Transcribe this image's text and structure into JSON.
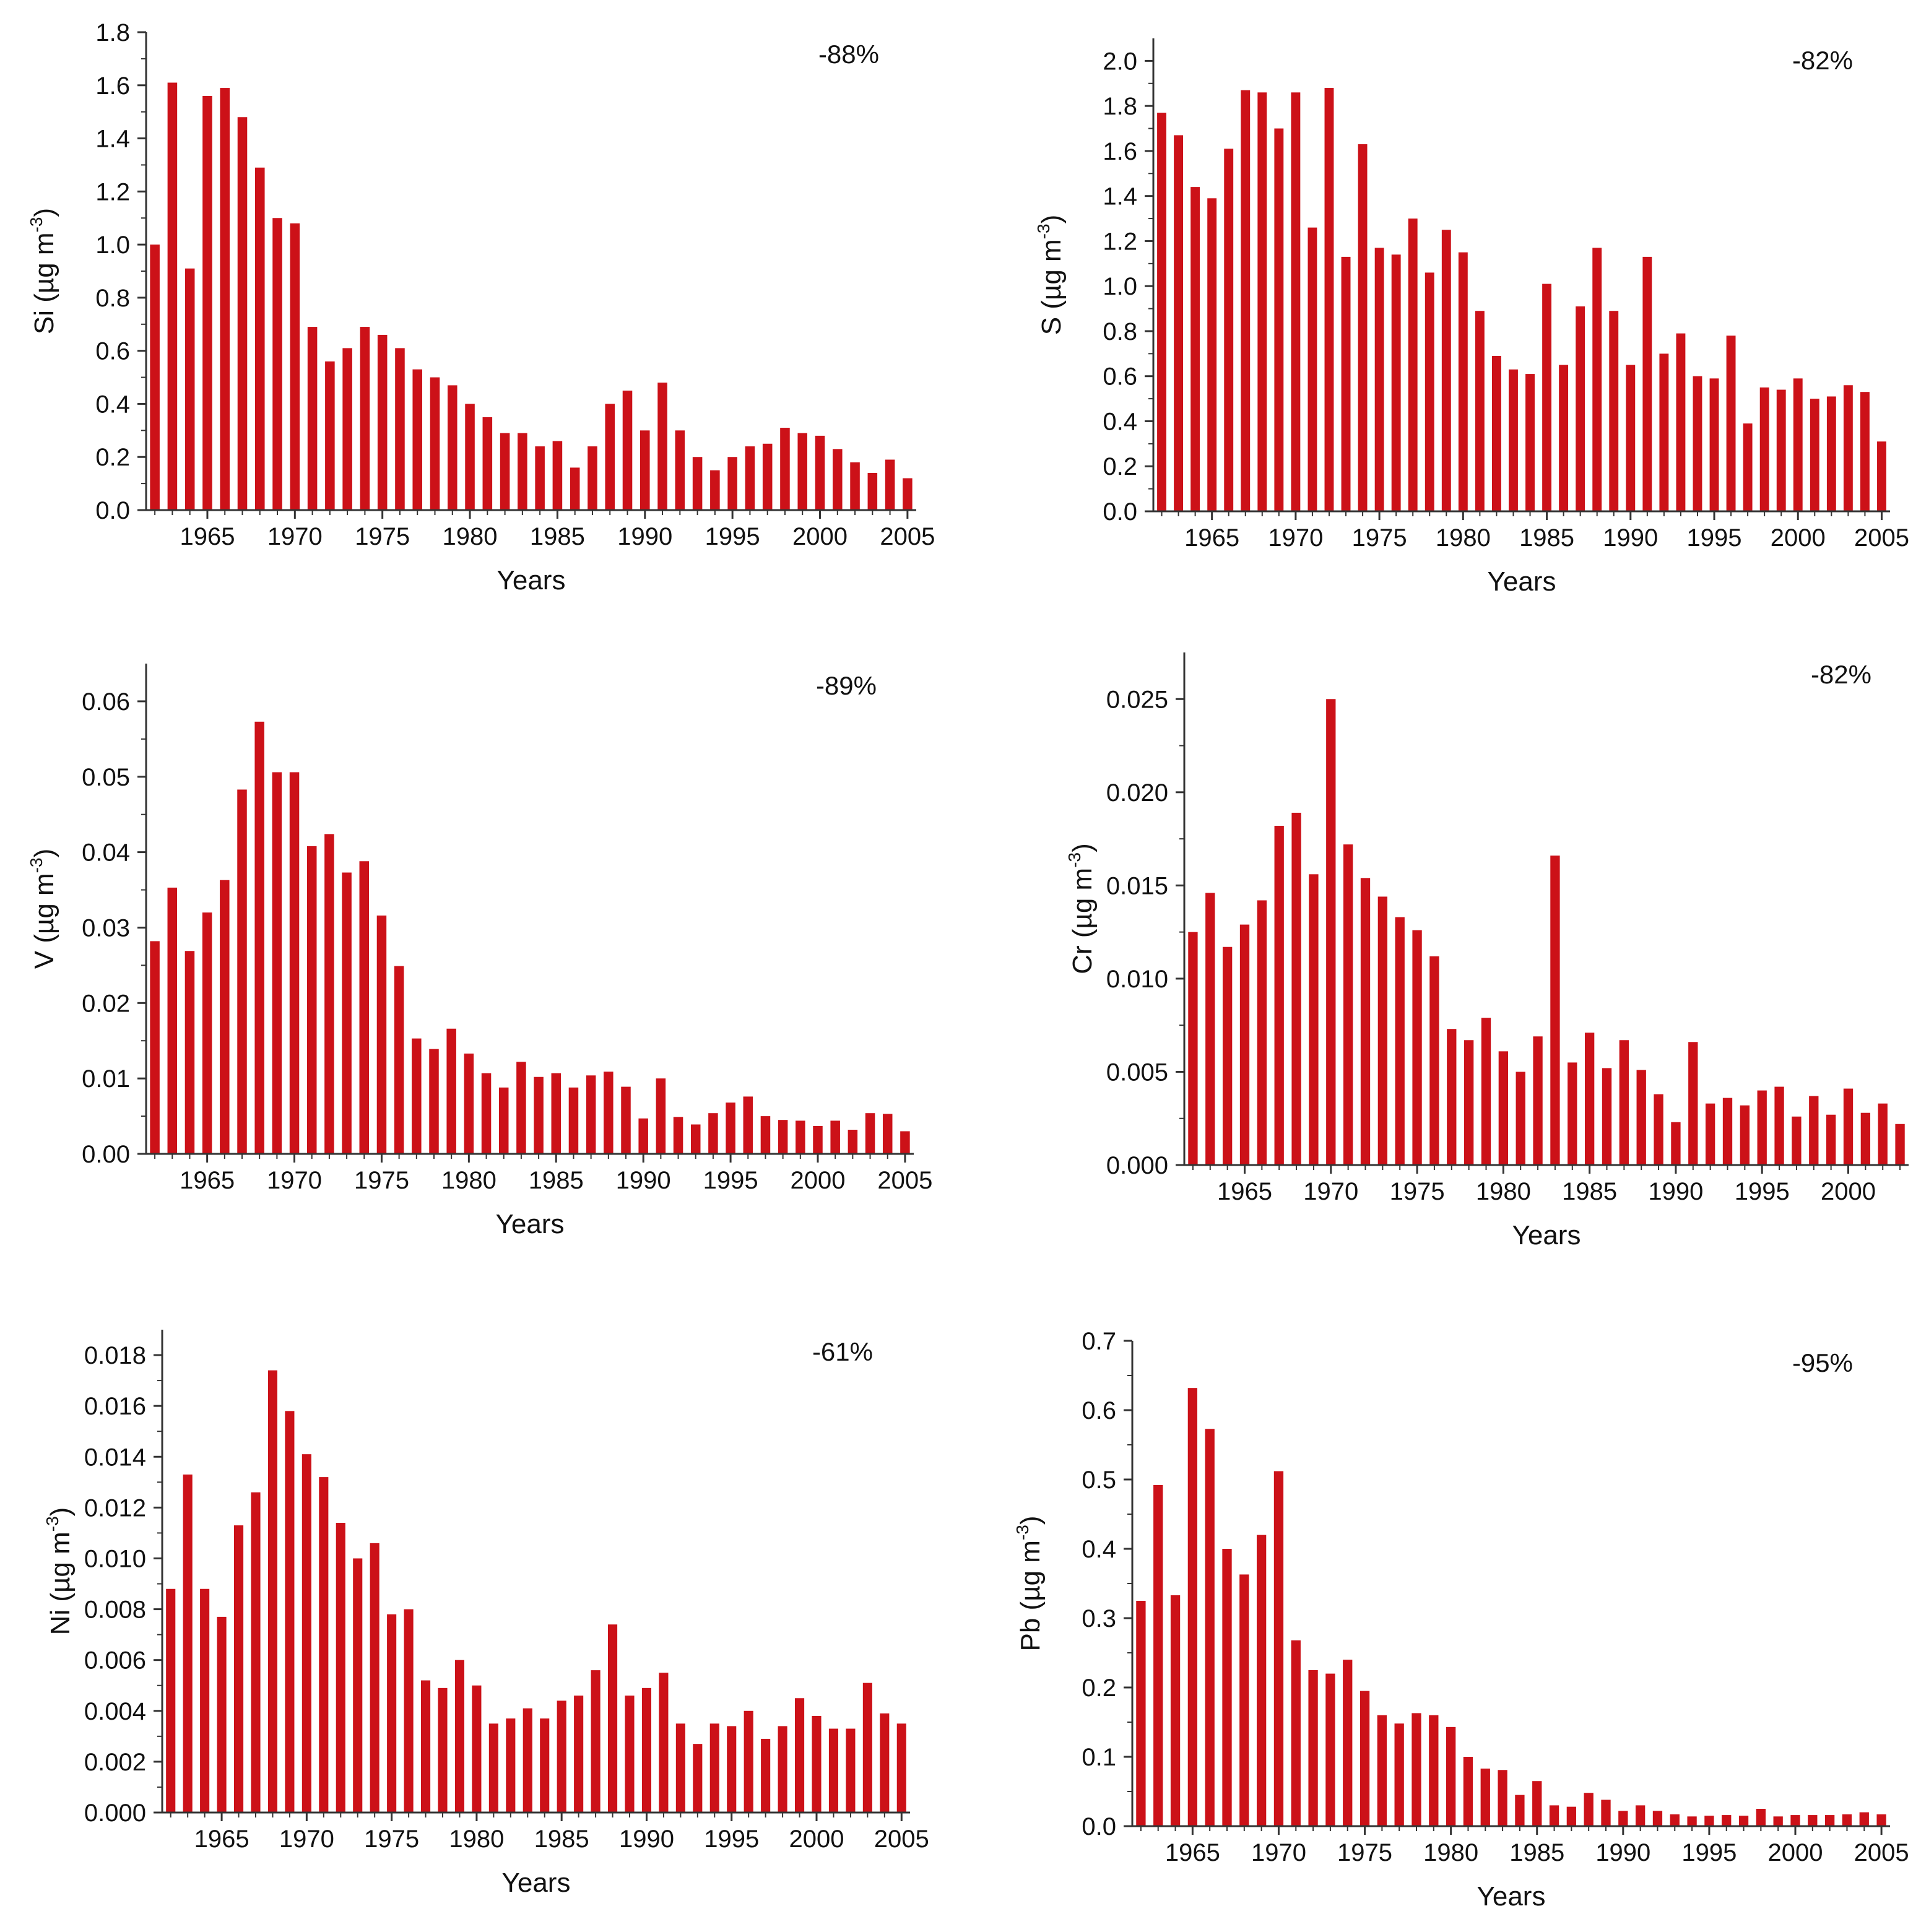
{
  "figure": {
    "xlabel": "Years",
    "bar_color": "#cc1118",
    "axis_color": "#333333"
  },
  "chart_data": [
    {
      "type": "bar",
      "element": "Si",
      "ylabel_symbol": "Si",
      "ylabel_unit_base": "(µg m",
      "ylabel_unit_exp": "-3",
      "ylabel_unit_close": ")",
      "annotation": "-88%",
      "x": [
        1962,
        1963,
        1964,
        1965,
        1966,
        1967,
        1968,
        1969,
        1970,
        1971,
        1972,
        1973,
        1974,
        1975,
        1976,
        1977,
        1978,
        1979,
        1980,
        1981,
        1982,
        1983,
        1984,
        1985,
        1986,
        1987,
        1988,
        1989,
        1990,
        1991,
        1992,
        1993,
        1994,
        1995,
        1996,
        1997,
        1998,
        1999,
        2000,
        2001,
        2002,
        2003,
        2004,
        2005
      ],
      "values": [
        1.0,
        1.61,
        0.91,
        1.56,
        1.59,
        1.48,
        1.29,
        1.1,
        1.08,
        0.69,
        0.56,
        0.61,
        0.69,
        0.66,
        0.61,
        0.53,
        0.5,
        0.47,
        0.4,
        0.35,
        0.29,
        0.29,
        0.24,
        0.26,
        0.16,
        0.24,
        0.4,
        0.45,
        0.3,
        0.48,
        0.3,
        0.2,
        0.15,
        0.2,
        0.24,
        0.25,
        0.31,
        0.29,
        0.28,
        0.23,
        0.18,
        0.14,
        0.19,
        0.12
      ],
      "xticks": [
        1965,
        1970,
        1975,
        1980,
        1985,
        1990,
        1995,
        2000,
        2005
      ],
      "xtick_labels": [
        "1965",
        "1970",
        "1975",
        "1980",
        "1985",
        "1990",
        "1995",
        "2000",
        "2005"
      ],
      "xlim": [
        1961.5,
        2005.5
      ],
      "ylim": [
        0,
        1.8
      ],
      "yticks": [
        0,
        0.2,
        0.4,
        0.6,
        0.8,
        1.0,
        1.2,
        1.4,
        1.6,
        1.8
      ],
      "ytick_labels": [
        "0.0",
        "0.2",
        "0.4",
        "0.6",
        "0.8",
        "1.0",
        "1.2",
        "1.4",
        "1.6",
        "1.8"
      ]
    },
    {
      "type": "bar",
      "element": "S",
      "ylabel_symbol": "S",
      "ylabel_unit_base": "(µg m",
      "ylabel_unit_exp": "-3",
      "ylabel_unit_close": ")",
      "annotation": "-82%",
      "x": [
        1962,
        1963,
        1964,
        1965,
        1966,
        1967,
        1968,
        1969,
        1970,
        1971,
        1972,
        1973,
        1974,
        1975,
        1976,
        1977,
        1978,
        1979,
        1980,
        1981,
        1982,
        1983,
        1984,
        1985,
        1986,
        1987,
        1988,
        1989,
        1990,
        1991,
        1992,
        1993,
        1994,
        1995,
        1996,
        1997,
        1998,
        1999,
        2000,
        2001,
        2002,
        2003,
        2004,
        2005
      ],
      "values": [
        1.77,
        1.67,
        1.44,
        1.39,
        1.61,
        1.87,
        1.86,
        1.7,
        1.86,
        1.26,
        1.88,
        1.13,
        1.63,
        1.17,
        1.14,
        1.3,
        1.06,
        1.25,
        1.15,
        0.89,
        0.69,
        0.63,
        0.61,
        1.01,
        0.65,
        0.91,
        1.17,
        0.89,
        0.65,
        1.13,
        0.7,
        0.79,
        0.6,
        0.59,
        0.78,
        0.39,
        0.55,
        0.54,
        0.59,
        0.5,
        0.51,
        0.56,
        0.53,
        0.31
      ],
      "xticks": [
        1965,
        1970,
        1975,
        1980,
        1985,
        1990,
        1995,
        2000,
        2005
      ],
      "xtick_labels": [
        "1965",
        "1970",
        "1975",
        "1980",
        "1985",
        "1990",
        "1995",
        "2000",
        "2005"
      ],
      "xlim": [
        1961.5,
        2005.5
      ],
      "ylim": [
        0,
        2.1
      ],
      "yticks": [
        0,
        0.2,
        0.4,
        0.6,
        0.8,
        1.0,
        1.2,
        1.4,
        1.6,
        1.8,
        2.0
      ],
      "ytick_labels": [
        "0.0",
        "0.2",
        "0.4",
        "0.6",
        "0.8",
        "1.0",
        "1.2",
        "1.4",
        "1.6",
        "1.8",
        "2.0"
      ]
    },
    {
      "type": "bar",
      "element": "V",
      "ylabel_symbol": "V",
      "ylabel_unit_base": "(µg m",
      "ylabel_unit_exp": "-3",
      "ylabel_unit_close": ")",
      "annotation": "-89%",
      "x": [
        1962,
        1963,
        1964,
        1965,
        1966,
        1967,
        1968,
        1969,
        1970,
        1971,
        1972,
        1973,
        1974,
        1975,
        1976,
        1977,
        1978,
        1979,
        1980,
        1981,
        1982,
        1983,
        1984,
        1985,
        1986,
        1987,
        1988,
        1989,
        1990,
        1991,
        1992,
        1993,
        1994,
        1995,
        1996,
        1997,
        1998,
        1999,
        2000,
        2001,
        2002,
        2003,
        2004,
        2005
      ],
      "values": [
        0.0282,
        0.0353,
        0.0269,
        0.032,
        0.0363,
        0.0483,
        0.0573,
        0.0506,
        0.0506,
        0.0408,
        0.0424,
        0.0373,
        0.0388,
        0.0316,
        0.0249,
        0.0153,
        0.0139,
        0.0166,
        0.0133,
        0.0107,
        0.0088,
        0.0122,
        0.0102,
        0.0107,
        0.0088,
        0.0104,
        0.0109,
        0.0089,
        0.0047,
        0.01,
        0.0049,
        0.0039,
        0.0054,
        0.0068,
        0.0076,
        0.005,
        0.0045,
        0.0044,
        0.0037,
        0.0044,
        0.0032,
        0.0054,
        0.0053,
        0.003
      ],
      "xticks": [
        1965,
        1970,
        1975,
        1980,
        1985,
        1990,
        1995,
        2000,
        2005
      ],
      "xtick_labels": [
        "1965",
        "1970",
        "1975",
        "1980",
        "1985",
        "1990",
        "1995",
        "2000",
        "2005"
      ],
      "xlim": [
        1961.5,
        2005.5
      ],
      "ylim": [
        0,
        0.065
      ],
      "yticks": [
        0,
        0.01,
        0.02,
        0.03,
        0.04,
        0.05,
        0.06
      ],
      "ytick_labels": [
        "0.00",
        "0.01",
        "0.02",
        "0.03",
        "0.04",
        "0.05",
        "0.06"
      ]
    },
    {
      "type": "bar",
      "element": "Cr",
      "ylabel_symbol": "Cr",
      "ylabel_unit_base": "(µg m",
      "ylabel_unit_exp": "-3",
      "ylabel_unit_close": ")",
      "annotation": "-82%",
      "x": [
        1962,
        1963,
        1964,
        1965,
        1966,
        1967,
        1968,
        1969,
        1970,
        1971,
        1972,
        1973,
        1974,
        1975,
        1976,
        1977,
        1978,
        1979,
        1980,
        1981,
        1982,
        1983,
        1984,
        1985,
        1986,
        1987,
        1988,
        1989,
        1990,
        1991,
        1992,
        1993,
        1994,
        1995,
        1996,
        1997,
        1998,
        1999,
        2000,
        2001,
        2002,
        2003
      ],
      "values": [
        0.0125,
        0.0146,
        0.0117,
        0.0129,
        0.0142,
        0.0182,
        0.0189,
        0.0156,
        0.025,
        0.0172,
        0.0154,
        0.0144,
        0.0133,
        0.0126,
        0.0112,
        0.0073,
        0.0067,
        0.0079,
        0.0061,
        0.005,
        0.0069,
        0.0166,
        0.0055,
        0.0071,
        0.0052,
        0.0067,
        0.0051,
        0.0038,
        0.0023,
        0.0066,
        0.0033,
        0.0036,
        0.0032,
        0.004,
        0.0042,
        0.0026,
        0.0037,
        0.0027,
        0.0041,
        0.0028,
        0.0033,
        0.0022
      ],
      "xticks": [
        1965,
        1970,
        1975,
        1980,
        1985,
        1990,
        1995,
        2000
      ],
      "xtick_labels": [
        "1965",
        "1970",
        "1975",
        "1980",
        "1985",
        "1990",
        "1995",
        "2000"
      ],
      "xlim": [
        1961.5,
        2003.5
      ],
      "ylim": [
        0,
        0.0275
      ],
      "yticks": [
        0,
        0.005,
        0.01,
        0.015,
        0.02,
        0.025
      ],
      "ytick_labels": [
        "0.000",
        "0.005",
        "0.010",
        "0.015",
        "0.020",
        "0.025"
      ]
    },
    {
      "type": "bar",
      "element": "Ni",
      "ylabel_symbol": "Ni",
      "ylabel_unit_base": "(µg m",
      "ylabel_unit_exp": "-3",
      "ylabel_unit_close": ")",
      "annotation": "-61%",
      "x": [
        1962,
        1963,
        1964,
        1965,
        1966,
        1967,
        1968,
        1969,
        1970,
        1971,
        1972,
        1973,
        1974,
        1975,
        1976,
        1977,
        1978,
        1979,
        1980,
        1981,
        1982,
        1983,
        1984,
        1985,
        1986,
        1987,
        1988,
        1989,
        1990,
        1991,
        1992,
        1993,
        1994,
        1995,
        1996,
        1997,
        1998,
        1999,
        2000,
        2001,
        2002,
        2003,
        2004,
        2005
      ],
      "values": [
        0.0088,
        0.0133,
        0.0088,
        0.0077,
        0.0113,
        0.0126,
        0.0174,
        0.0158,
        0.0141,
        0.0132,
        0.0114,
        0.01,
        0.0106,
        0.0078,
        0.008,
        0.0052,
        0.0049,
        0.006,
        0.005,
        0.0035,
        0.0037,
        0.0041,
        0.0037,
        0.0044,
        0.0046,
        0.0056,
        0.0074,
        0.0046,
        0.0049,
        0.0055,
        0.0035,
        0.0027,
        0.0035,
        0.0034,
        0.004,
        0.0029,
        0.0034,
        0.0045,
        0.0038,
        0.0033,
        0.0033,
        0.0051,
        0.0039,
        0.0035
      ],
      "xticks": [
        1965,
        1970,
        1975,
        1980,
        1985,
        1990,
        1995,
        2000,
        2005
      ],
      "xtick_labels": [
        "1965",
        "1970",
        "1975",
        "1980",
        "1985",
        "1990",
        "1995",
        "2000",
        "2005"
      ],
      "xlim": [
        1961.5,
        2005.5
      ],
      "ylim": [
        0,
        0.019
      ],
      "yticks": [
        0,
        0.002,
        0.004,
        0.006,
        0.008,
        0.01,
        0.012,
        0.014,
        0.016,
        0.018
      ],
      "ytick_labels": [
        "0.000",
        "0.002",
        "0.004",
        "0.006",
        "0.008",
        "0.010",
        "0.012",
        "0.014",
        "0.016",
        "0.018"
      ]
    },
    {
      "type": "bar",
      "element": "Pb",
      "ylabel_symbol": "Pb",
      "ylabel_unit_base": "(µg m",
      "ylabel_unit_exp": "-3",
      "ylabel_unit_close": ")",
      "annotation": "-95%",
      "x": [
        1962,
        1963,
        1964,
        1965,
        1966,
        1967,
        1968,
        1969,
        1970,
        1971,
        1972,
        1973,
        1974,
        1975,
        1976,
        1977,
        1978,
        1979,
        1980,
        1981,
        1982,
        1983,
        1984,
        1985,
        1986,
        1987,
        1988,
        1989,
        1990,
        1991,
        1992,
        1993,
        1994,
        1995,
        1996,
        1997,
        1998,
        1999,
        2000,
        2001,
        2002,
        2003,
        2004,
        2005
      ],
      "values": [
        0.325,
        0.492,
        0.333,
        0.632,
        0.573,
        0.4,
        0.363,
        0.42,
        0.512,
        0.268,
        0.225,
        0.22,
        0.24,
        0.195,
        0.16,
        0.148,
        0.163,
        0.16,
        0.143,
        0.1,
        0.083,
        0.081,
        0.045,
        0.065,
        0.03,
        0.028,
        0.048,
        0.038,
        0.022,
        0.03,
        0.022,
        0.017,
        0.014,
        0.015,
        0.016,
        0.015,
        0.025,
        0.014,
        0.016,
        0.016,
        0.016,
        0.017,
        0.02,
        0.017
      ],
      "xticks": [
        1965,
        1970,
        1975,
        1980,
        1985,
        1990,
        1995,
        2000,
        2005
      ],
      "xtick_labels": [
        "1965",
        "1970",
        "1975",
        "1980",
        "1985",
        "1990",
        "1995",
        "2000",
        "2005"
      ],
      "xlim": [
        1961.5,
        2005.5
      ],
      "ylim": [
        0,
        0.7
      ],
      "yticks": [
        0,
        0.1,
        0.2,
        0.3,
        0.4,
        0.5,
        0.6,
        0.7
      ],
      "ytick_labels": [
        "0.0",
        "0.1",
        "0.2",
        "0.3",
        "0.4",
        "0.5",
        "0.6",
        "0.7"
      ]
    }
  ]
}
